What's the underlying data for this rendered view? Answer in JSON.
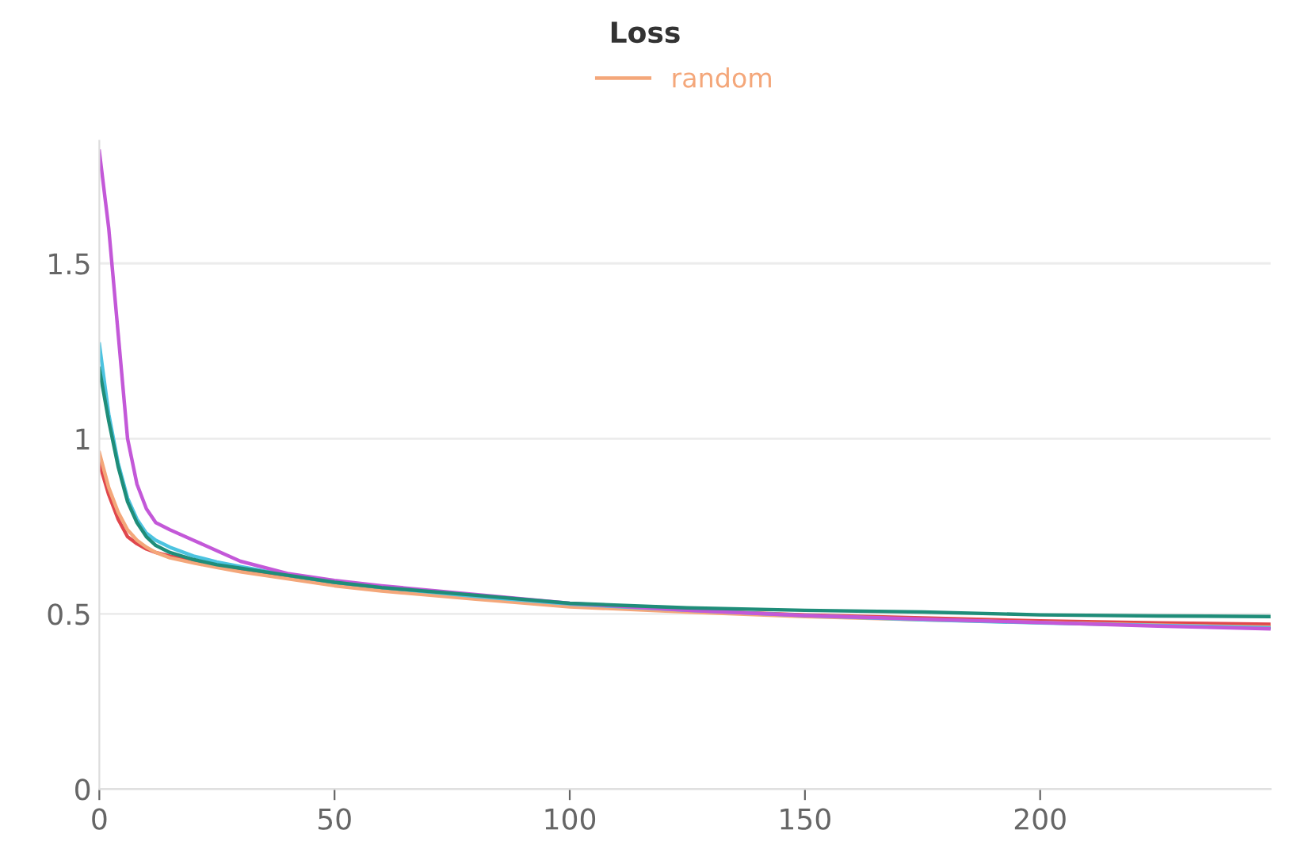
{
  "chart_data": {
    "type": "line",
    "title": "Loss",
    "x": [
      0,
      2,
      4,
      6,
      8,
      10,
      12,
      15,
      20,
      25,
      30,
      40,
      50,
      60,
      80,
      100,
      125,
      150,
      175,
      200,
      225,
      249
    ],
    "series": [
      {
        "color": "#e0474c",
        "values": [
          0.93,
          0.84,
          0.77,
          0.72,
          0.7,
          0.685,
          0.675,
          0.665,
          0.65,
          0.635,
          0.625,
          0.605,
          0.585,
          0.57,
          0.547,
          0.525,
          0.51,
          0.497,
          0.488,
          0.48,
          0.474,
          0.47
        ]
      },
      {
        "name": "random",
        "color": "#f4a77a",
        "values": [
          0.96,
          0.86,
          0.79,
          0.74,
          0.71,
          0.69,
          0.675,
          0.66,
          0.645,
          0.632,
          0.62,
          0.6,
          0.58,
          0.565,
          0.542,
          0.52,
          0.505,
          0.492,
          0.483,
          0.475,
          0.468,
          0.462
        ]
      },
      {
        "color": "#4cc3e0",
        "values": [
          1.27,
          1.07,
          0.93,
          0.83,
          0.77,
          0.73,
          0.71,
          0.69,
          0.665,
          0.648,
          0.635,
          0.61,
          0.59,
          0.575,
          0.55,
          0.528,
          0.51,
          0.495,
          0.483,
          0.474,
          0.467,
          0.46
        ]
      },
      {
        "color": "#c358d8",
        "values": [
          1.82,
          1.6,
          1.3,
          1.0,
          0.87,
          0.8,
          0.76,
          0.74,
          0.71,
          0.68,
          0.65,
          0.615,
          0.595,
          0.58,
          0.555,
          0.53,
          0.51,
          0.495,
          0.485,
          0.475,
          0.465,
          0.457
        ]
      },
      {
        "color": "#1f8d79",
        "values": [
          1.2,
          1.05,
          0.92,
          0.82,
          0.76,
          0.72,
          0.695,
          0.675,
          0.655,
          0.64,
          0.63,
          0.61,
          0.59,
          0.575,
          0.553,
          0.53,
          0.517,
          0.51,
          0.505,
          0.497,
          0.494,
          0.492
        ]
      }
    ],
    "xlim": [
      0,
      249
    ],
    "xticks": [
      0,
      50,
      100,
      150,
      200
    ],
    "ylim": [
      0,
      1.85
    ],
    "yticks": [
      0,
      0.5,
      1,
      1.5
    ],
    "grid": "y",
    "legend": "top",
    "marker": "none",
    "line_style": "solid"
  }
}
